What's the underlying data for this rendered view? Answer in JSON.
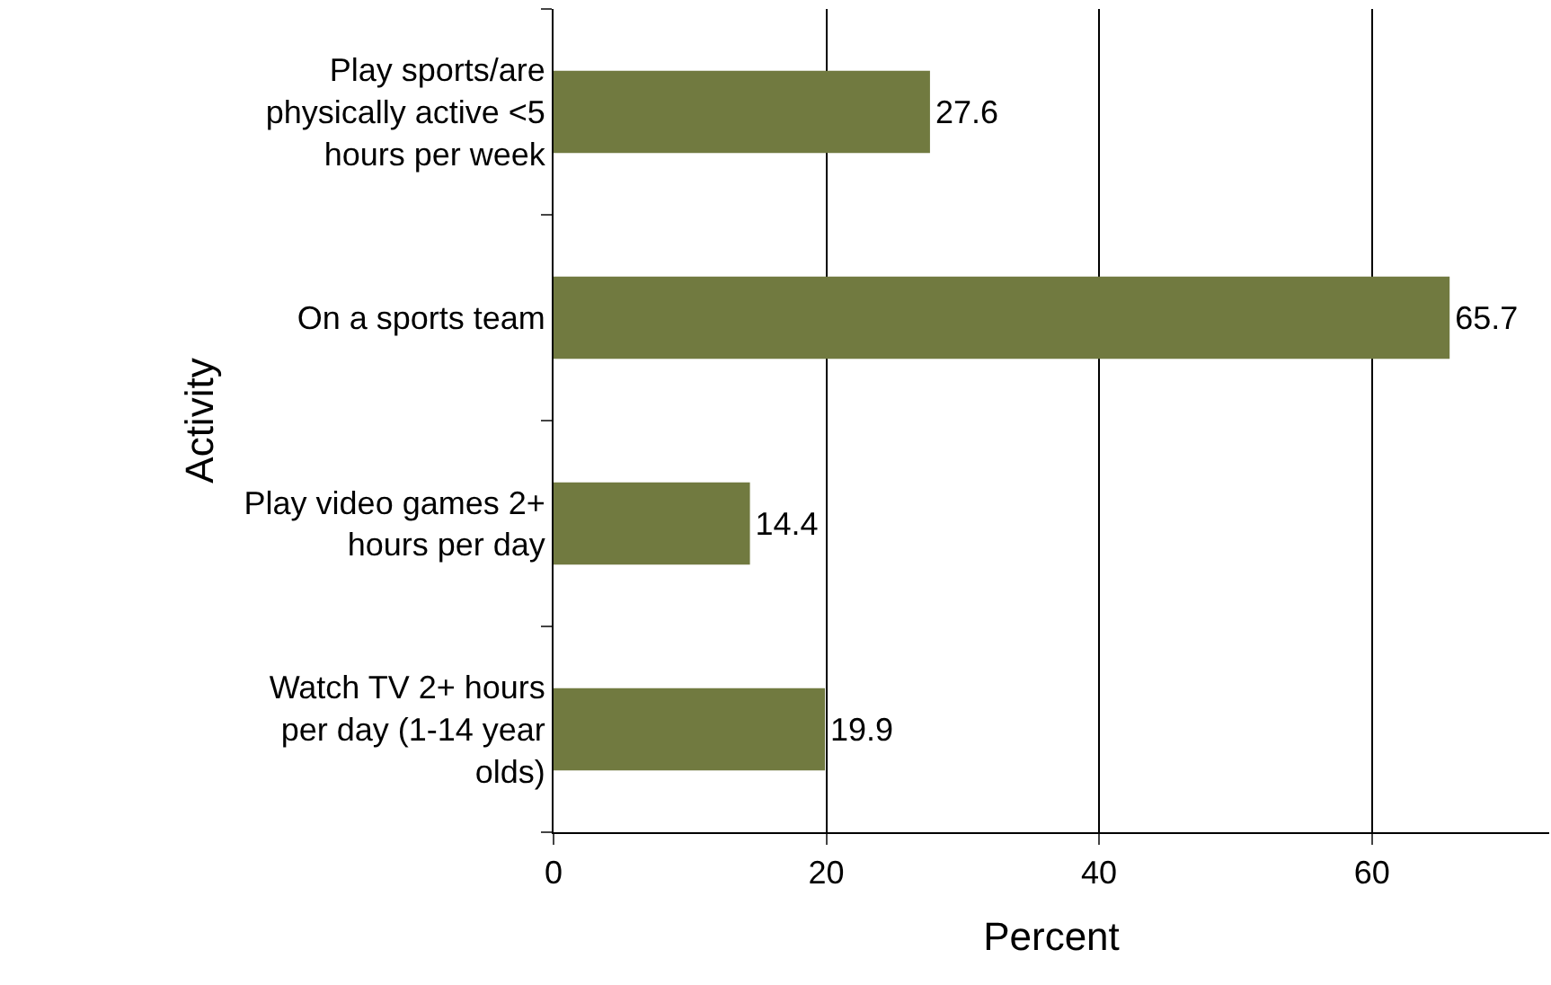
{
  "chart_data": {
    "type": "bar",
    "orientation": "horizontal",
    "xlabel": "Percent",
    "ylabel": "Activity",
    "categories": [
      "Play sports/are physically active <5 hours per week",
      "On a sports team",
      "Play video games 2+ hours per day",
      "Watch TV 2+ hours per day (1-14 year olds)"
    ],
    "values": [
      27.6,
      65.7,
      14.4,
      19.9
    ],
    "color": "#717a40",
    "data_labels": true,
    "xlim": [
      0,
      73
    ],
    "xticks": [
      0,
      20,
      40,
      60
    ],
    "grid": "x"
  }
}
